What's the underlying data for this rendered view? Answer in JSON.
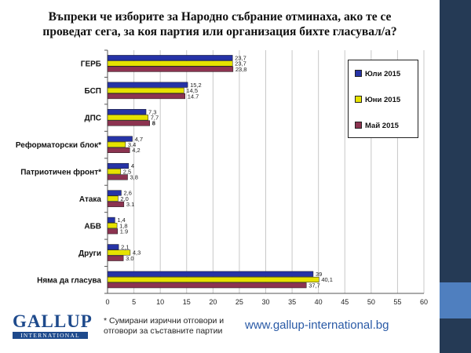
{
  "title": {
    "line1": "Въпреки че изборите за Народно събрание отминаха, ако те се",
    "line2": "проведат сега, за коя партия или организация бихте гласувал/а?"
  },
  "footnote": {
    "line1": "* Сумирани изрични отговори и",
    "line2": "отговори за съставните партии"
  },
  "website": "www.gallup-international.bg",
  "logo": {
    "top": "GALLUP",
    "bottom": "INTERNATIONAL"
  },
  "colors": {
    "jul": "#2633a6",
    "jun": "#e6e200",
    "may": "#8c3350",
    "slide_bar": "#253a55",
    "slide_accent": "#4f7fbf",
    "brand": "#1e4a8c"
  },
  "chart_data": {
    "type": "bar",
    "orientation": "horizontal",
    "categories": [
      "ГЕРБ",
      "БСП",
      "ДПС",
      "Реформаторски блок*",
      "Патриотичен фронт*",
      "Атака",
      "АБВ",
      "Други",
      "Няма да гласува"
    ],
    "series": [
      {
        "name": "Юли 2015",
        "key": "jul",
        "values": [
          23.7,
          15.2,
          7.3,
          4.7,
          4,
          2.6,
          1.4,
          2.1,
          39
        ],
        "labels": [
          "23,7",
          "15,2",
          "7,3",
          "4,7",
          "4",
          "2,6",
          "1,4",
          "2,1",
          "39"
        ]
      },
      {
        "name": "Юни 2015",
        "key": "jun",
        "values": [
          23.7,
          14.5,
          7.7,
          3.4,
          2.5,
          2.0,
          1.8,
          4.3,
          40.1
        ],
        "labels": [
          "23,7",
          "14,5",
          "7,7",
          "3,4",
          "2,5",
          "2,0",
          "1,8",
          "4,3",
          "40,1"
        ]
      },
      {
        "name": "Май 2015",
        "key": "may",
        "values": [
          23.8,
          14.7,
          8,
          4.2,
          3.8,
          3.1,
          1.9,
          3.0,
          37.7
        ],
        "labels": [
          "23,8",
          "14.7",
          "8",
          "4,2",
          "3,8",
          "3.1",
          "1.9",
          "3.0",
          "37,7"
        ]
      }
    ],
    "xlim": [
      0,
      60
    ],
    "x_ticks": [
      0,
      5,
      10,
      15,
      20,
      25,
      30,
      35,
      40,
      45,
      50,
      55,
      60
    ],
    "grid": true,
    "legend_position": "right",
    "legend_order": [
      "Юли 2015",
      "Юни 2015",
      "Май 2015"
    ]
  }
}
